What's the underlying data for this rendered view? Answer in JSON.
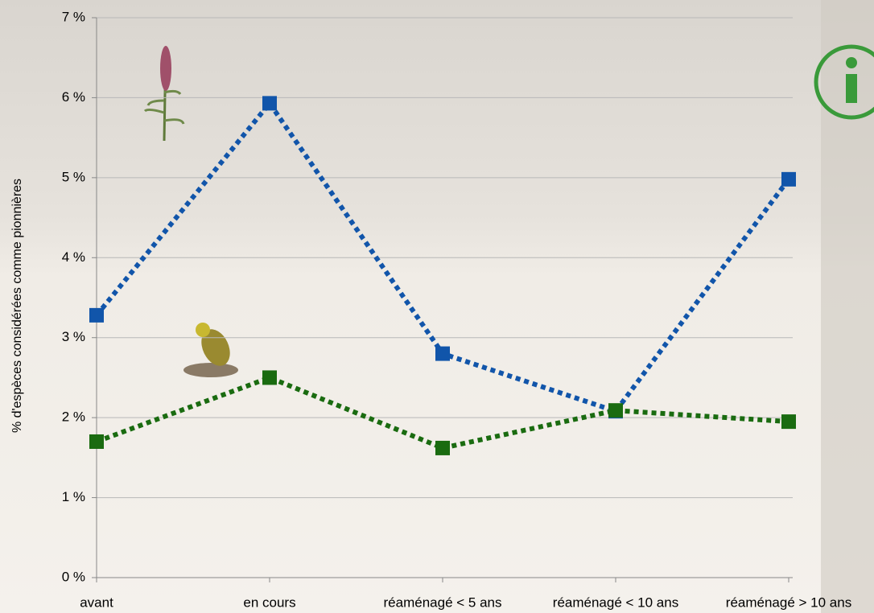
{
  "chart_data": {
    "type": "line",
    "y_label": "% d'espèces considérées comme pionnières",
    "categories": [
      "avant",
      "en cours",
      "réaménagé < 5 ans",
      "réaménagé < 10 ans",
      "réaménagé > 10 ans"
    ],
    "series": [
      {
        "color": "#1155aa",
        "values": [
          3.28,
          5.93,
          2.8,
          2.08,
          4.98
        ]
      },
      {
        "color": "#1a6b10",
        "values": [
          1.7,
          2.5,
          1.62,
          2.09,
          1.95
        ]
      }
    ],
    "ylim": [
      0,
      7
    ],
    "yticks": [
      {
        "value": 0,
        "label": "0 %"
      },
      {
        "value": 1,
        "label": "1 %"
      },
      {
        "value": 2,
        "label": "2 %"
      },
      {
        "value": 3,
        "label": "3 %"
      },
      {
        "value": 4,
        "label": "4 %"
      },
      {
        "value": 5,
        "label": "5 %"
      },
      {
        "value": 6,
        "label": "6 %"
      },
      {
        "value": 7,
        "label": "7 %"
      }
    ],
    "grid": true
  }
}
